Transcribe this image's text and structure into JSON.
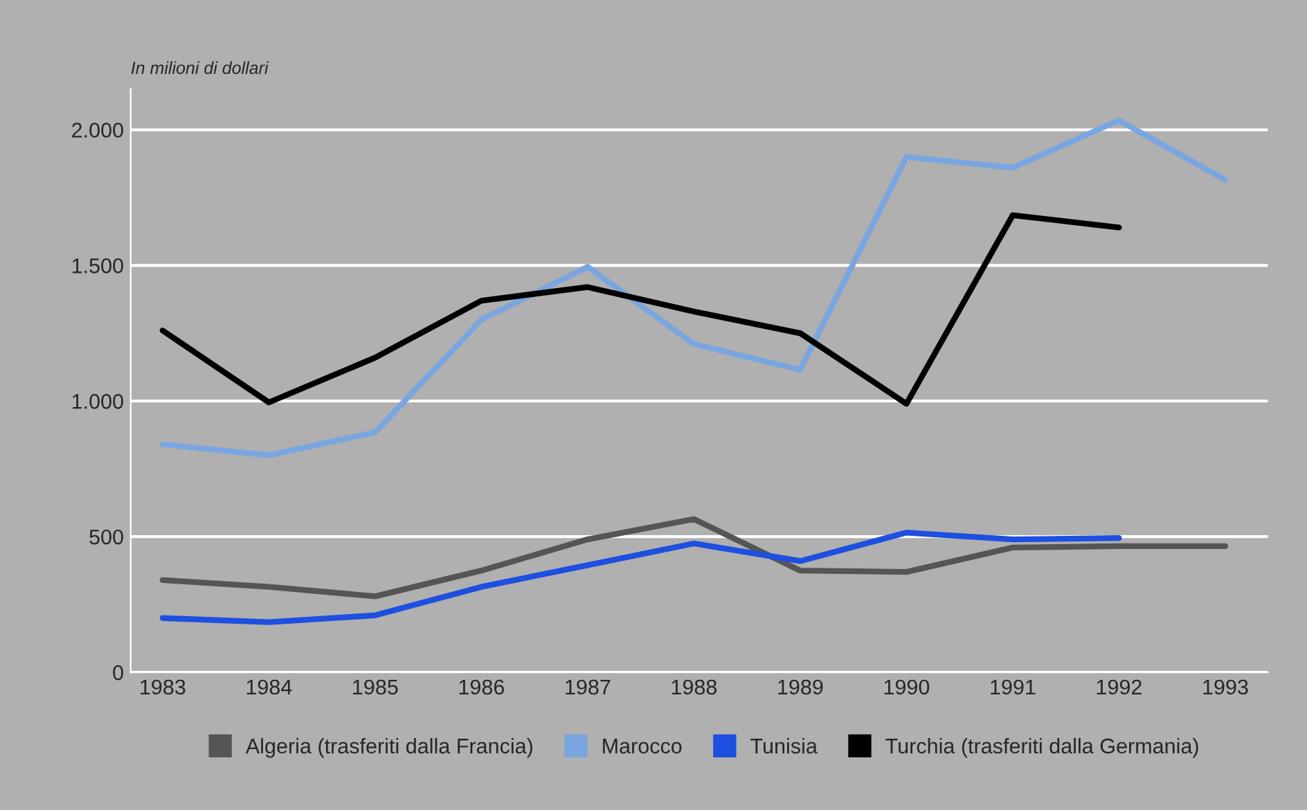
{
  "chart_data": {
    "type": "line",
    "ylabel": "In milioni di dollari",
    "categories": [
      "1983",
      "1984",
      "1985",
      "1986",
      "1987",
      "1988",
      "1989",
      "1990",
      "1991",
      "1992",
      "1993"
    ],
    "series": [
      {
        "name": "Algeria (trasferiti dalla Francia)",
        "color": "#555555",
        "values": [
          340,
          315,
          280,
          375,
          490,
          565,
          375,
          370,
          460,
          465,
          465
        ]
      },
      {
        "name": "Marocco",
        "color": "#7aa6e0",
        "values": [
          840,
          800,
          885,
          1300,
          1495,
          1210,
          1115,
          1900,
          1860,
          2035,
          1815
        ]
      },
      {
        "name": "Tunisia",
        "color": "#1d4fe0",
        "values": [
          200,
          185,
          210,
          315,
          395,
          475,
          410,
          515,
          490,
          495,
          null
        ]
      },
      {
        "name": "Turchia (trasferiti dalla Germania)",
        "color": "#000000",
        "values": [
          1260,
          995,
          1160,
          1370,
          1420,
          1330,
          1250,
          990,
          1685,
          1640,
          null
        ]
      }
    ],
    "ylim": [
      0,
      2150
    ],
    "yticks": [
      0,
      {
        "value": 500,
        "label": "500"
      },
      {
        "value": 1000,
        "label": "1.000"
      },
      {
        "value": 1500,
        "label": "1.500"
      },
      {
        "value": 2000,
        "label": "2.000"
      }
    ],
    "grid": "y",
    "legend": "bottom",
    "marker": "none",
    "line_style": "solid"
  }
}
